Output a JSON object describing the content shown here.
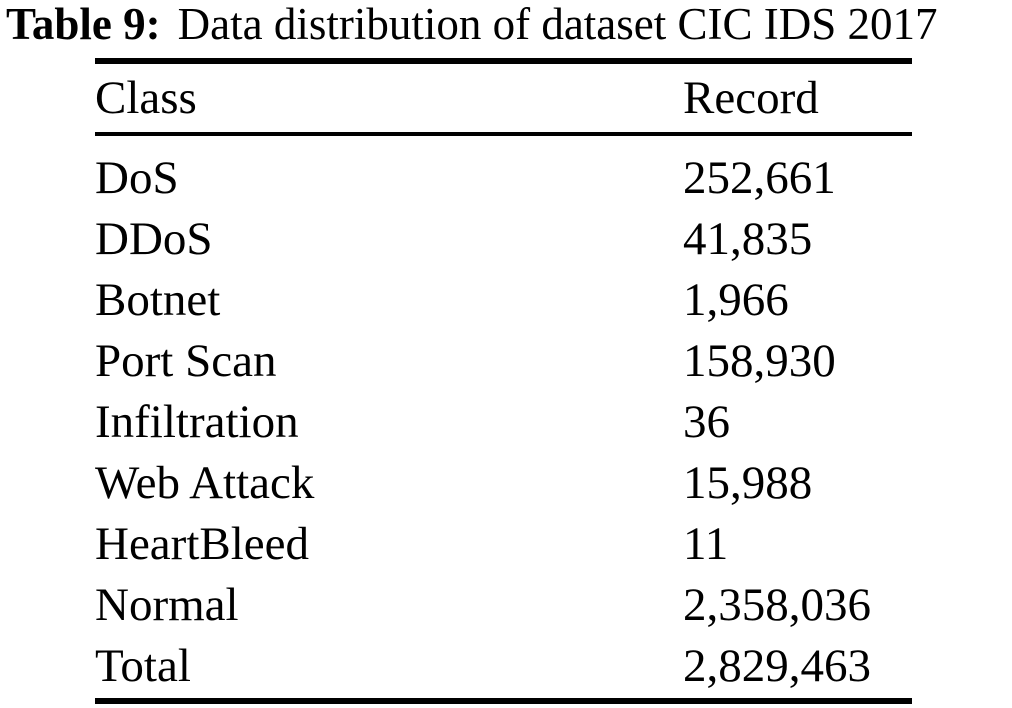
{
  "page": {
    "background_color": "#ffffff",
    "text_color": "#000000",
    "rule_color": "#000000"
  },
  "caption": {
    "label": "Table 9:",
    "text": "Data distribution of dataset CIC IDS 2017"
  },
  "table": {
    "columns": [
      {
        "label": "Class"
      },
      {
        "label": "Record"
      }
    ],
    "rows": [
      {
        "class": "DoS",
        "record": "252,661"
      },
      {
        "class": "DDoS",
        "record": "41,835"
      },
      {
        "class": "Botnet",
        "record": "1,966"
      },
      {
        "class": "Port Scan",
        "record": "158,930"
      },
      {
        "class": "Infiltration",
        "record": "36"
      },
      {
        "class": "Web Attack",
        "record": "15,988"
      },
      {
        "class": "HeartBleed",
        "record": "11"
      },
      {
        "class": "Normal",
        "record": "2,358,036"
      },
      {
        "class": "Total",
        "record": "2,829,463"
      }
    ]
  }
}
